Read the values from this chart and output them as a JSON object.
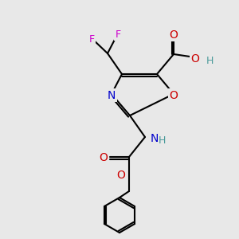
{
  "bg_color": "#e8e8e8",
  "atom_colors": {
    "C": "#000000",
    "N": "#0000cc",
    "O": "#cc0000",
    "F": "#cc00cc",
    "H": "#4a9a9a"
  },
  "bond_color": "#000000",
  "bond_width": 1.5,
  "font_size": 9,
  "fig_size": [
    3.0,
    3.0
  ],
  "dpi": 100
}
